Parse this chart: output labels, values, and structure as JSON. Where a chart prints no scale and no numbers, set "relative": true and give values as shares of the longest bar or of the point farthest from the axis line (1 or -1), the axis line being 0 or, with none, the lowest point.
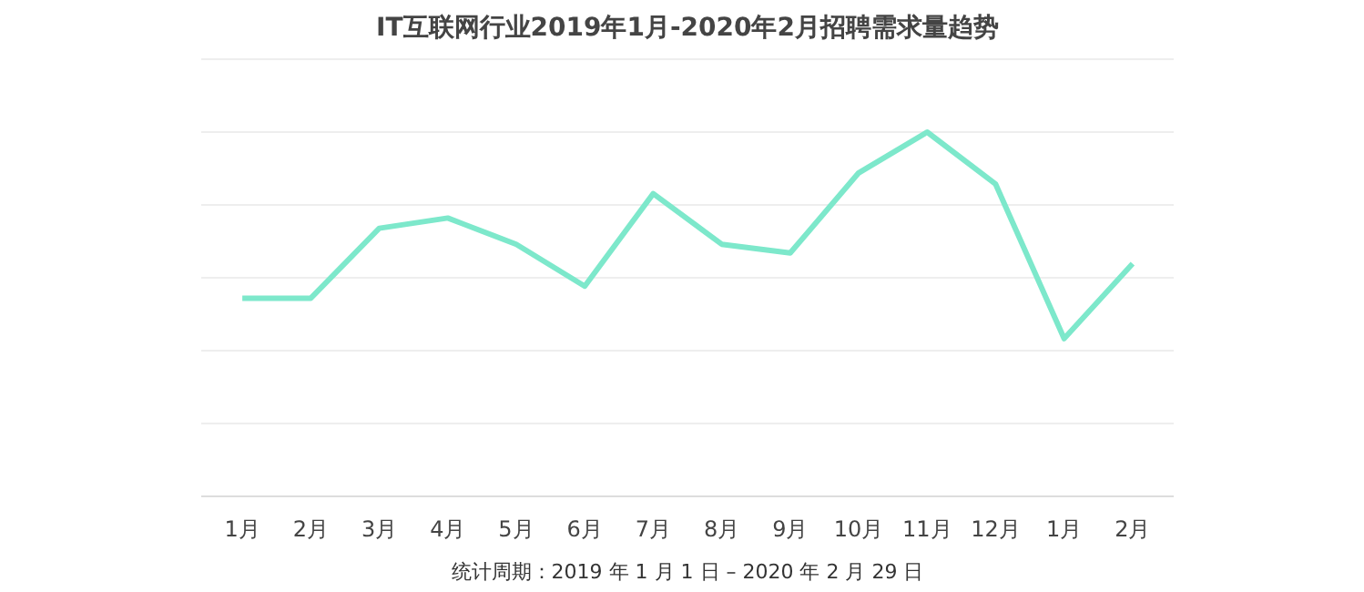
{
  "chart_data": {
    "type": "line",
    "title": "IT互联网行业2019年1月-2020年2月招聘需求量趋势",
    "categories": [
      "1月",
      "2月",
      "3月",
      "4月",
      "5月",
      "6月",
      "7月",
      "8月",
      "9月",
      "10月",
      "11月",
      "12月",
      "1月",
      "2月"
    ],
    "relative": true,
    "series": [
      {
        "color": "#7de8cb",
        "values": [
          0.544,
          0.544,
          0.736,
          0.764,
          0.692,
          0.577,
          0.831,
          0.692,
          0.668,
          0.888,
          1,
          0.857,
          0.433,
          0.639
        ]
      }
    ],
    "grid": "y",
    "marker": "none",
    "line_style": "solid",
    "annotations": [
      "统计周期：2019 年 1 月 1 日 – 2020 年 2 月 29 日"
    ]
  }
}
